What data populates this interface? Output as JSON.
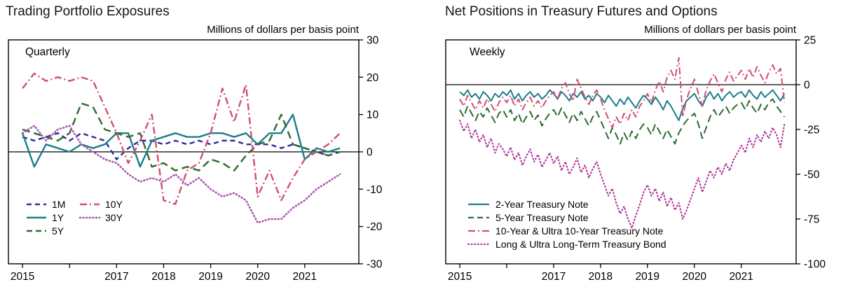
{
  "chart_data": [
    {
      "type": "line",
      "title": "Trading Portfolio Exposures",
      "units_label": "Millions of dollars per basis point",
      "frequency_label": "Quarterly",
      "x_range": [
        2015.0,
        2021.75
      ],
      "ylim": [
        -30,
        30
      ],
      "yticks": [
        30,
        20,
        10,
        0,
        -10,
        -20,
        -30
      ],
      "xticks": [
        2015,
        2016,
        2017,
        2018,
        2019,
        2020,
        2021
      ],
      "xtick_labels": [
        "2015",
        "",
        "2017",
        "2018",
        "2019",
        "2020",
        "2021"
      ],
      "zero_line": true,
      "legend_position": "bottom-left",
      "series": [
        {
          "name": "1M",
          "color": "#2b2ba0",
          "dash": "dashed",
          "values": [
            4,
            3,
            4,
            5,
            3,
            5,
            4,
            3,
            -2,
            1,
            3,
            3,
            2,
            3,
            2,
            3,
            2,
            3,
            3,
            2,
            2,
            2,
            1,
            2,
            1,
            0,
            -1,
            0
          ]
        },
        {
          "name": "1Y",
          "color": "#1b7f8c",
          "dash": "solid",
          "values": [
            5,
            -4,
            2,
            1,
            0,
            2,
            1,
            2,
            5,
            5,
            -4,
            3,
            4,
            5,
            4,
            4,
            5,
            5,
            4,
            5,
            2,
            5,
            5,
            10,
            -2,
            1,
            0,
            1
          ]
        },
        {
          "name": "5Y",
          "color": "#2d6a2f",
          "dash": "longdash",
          "values": [
            6,
            5,
            4,
            3,
            5,
            13,
            12,
            6,
            5,
            4,
            5,
            -4,
            -3,
            -5,
            -4,
            -5,
            -2,
            -3,
            -5,
            -1,
            2,
            3,
            10,
            2,
            1,
            0,
            -1,
            0
          ]
        },
        {
          "name": "10Y",
          "color": "#d14f70",
          "dash": "dashdot",
          "values": [
            17,
            21,
            19,
            20,
            19,
            20,
            19,
            12,
            5,
            -3,
            3,
            10,
            -13,
            -14,
            -5,
            -3,
            5,
            17,
            8,
            18,
            -12,
            -5,
            -13,
            -7,
            -2,
            0,
            2,
            5
          ]
        },
        {
          "name": "30Y",
          "color": "#aa55b2",
          "dash": "dotted",
          "values": [
            5,
            7,
            3,
            6,
            7,
            2,
            0,
            -2,
            -3,
            -6,
            -8,
            -7,
            -8,
            -6,
            -9,
            -7,
            -10,
            -12,
            -11,
            -13,
            -19,
            -18,
            -18,
            -15,
            -13,
            -10,
            -8,
            -6
          ]
        }
      ]
    },
    {
      "type": "line",
      "title": "Net Positions in Treasury Futures and Options",
      "units_label": "Millions of dollars per basis point",
      "frequency_label": "Weekly",
      "x_range": [
        2015.0,
        2021.92
      ],
      "ylim": [
        -100,
        25
      ],
      "yticks": [
        25,
        0,
        -25,
        -50,
        -75,
        -100
      ],
      "xticks": [
        2015,
        2016,
        2017,
        2018,
        2019,
        2020,
        2021
      ],
      "xtick_labels": [
        "2015",
        "",
        "2017",
        "2018",
        "2019",
        "2020",
        "2021"
      ],
      "zero_line": true,
      "legend_position": "bottom-left",
      "series": [
        {
          "name": "2-Year Treasury Note",
          "color": "#1b7f8c",
          "dash": "solid",
          "values": [
            -4,
            -6,
            -3,
            -7,
            -5,
            -8,
            -4,
            -6,
            -9,
            -5,
            -7,
            -4,
            -6,
            -3,
            -8,
            -5,
            -9,
            -6,
            -4,
            -7,
            -5,
            -8,
            -6,
            -3,
            -5,
            -8,
            -4,
            -6,
            -9,
            -5,
            -7,
            -4,
            -8,
            -6,
            -9,
            -5,
            -7,
            -10,
            -6,
            -9,
            -12,
            -8,
            -11,
            -7,
            -10,
            -13,
            -9,
            -6,
            -8,
            -11,
            -7,
            -10,
            -14,
            -9,
            -12,
            -16,
            -20,
            -13,
            -9,
            -7,
            -5,
            -9,
            -12,
            -7,
            -4,
            -8,
            -5,
            -9,
            -6,
            -4,
            -7,
            -5,
            -4,
            -7,
            -3,
            -6,
            -8,
            -4,
            -7,
            -5,
            -3,
            -6,
            -9,
            -5
          ]
        },
        {
          "name": "5-Year Treasury Note",
          "color": "#2d6a2f",
          "dash": "longdash",
          "values": [
            -14,
            -18,
            -12,
            -16,
            -20,
            -15,
            -18,
            -13,
            -17,
            -21,
            -16,
            -14,
            -18,
            -14,
            -20,
            -16,
            -22,
            -18,
            -15,
            -20,
            -17,
            -23,
            -19,
            -16,
            -14,
            -18,
            -13,
            -17,
            -21,
            -16,
            -20,
            -15,
            -19,
            -23,
            -18,
            -15,
            -20,
            -25,
            -30,
            -24,
            -28,
            -33,
            -27,
            -31,
            -26,
            -30,
            -25,
            -22,
            -24,
            -28,
            -22,
            -26,
            -30,
            -25,
            -29,
            -33,
            -27,
            -23,
            -20,
            -18,
            -16,
            -22,
            -30,
            -24,
            -18,
            -14,
            -18,
            -15,
            -12,
            -16,
            -13,
            -11,
            -10,
            -14,
            -9,
            -13,
            -16,
            -11,
            -14,
            -10,
            -8,
            -12,
            -15,
            -18
          ]
        },
        {
          "name": "10-Year & Ultra 10-Year Treasury Note",
          "color": "#d14f70",
          "dash": "dashdot",
          "values": [
            -8,
            -12,
            -6,
            -10,
            -14,
            -9,
            -13,
            -8,
            -11,
            -15,
            -10,
            -7,
            -10,
            -6,
            -12,
            -8,
            -14,
            -10,
            -7,
            -12,
            -9,
            -13,
            -9,
            -6,
            -4,
            -8,
            -2,
            1,
            -5,
            -9,
            3,
            -2,
            -7,
            -11,
            -6,
            -3,
            -8,
            -14,
            -19,
            -24,
            -18,
            -22,
            -16,
            -20,
            -14,
            -18,
            -12,
            -9,
            -5,
            -10,
            -3,
            2,
            -4,
            4,
            8,
            3,
            15,
            -18,
            -8,
            -2,
            3,
            -5,
            -12,
            -3,
            2,
            6,
            1,
            -4,
            3,
            7,
            2,
            5,
            8,
            3,
            9,
            4,
            10,
            5,
            1,
            7,
            11,
            6,
            9,
            -10
          ]
        },
        {
          "name": "Long & Ultra Long-Term Treasury Bond",
          "color": "#b23ba0",
          "dash": "dotted",
          "values": [
            -20,
            -26,
            -22,
            -30,
            -25,
            -32,
            -28,
            -35,
            -30,
            -38,
            -33,
            -36,
            -40,
            -35,
            -42,
            -38,
            -45,
            -40,
            -36,
            -43,
            -39,
            -46,
            -42,
            -38,
            -44,
            -40,
            -48,
            -43,
            -50,
            -46,
            -41,
            -49,
            -45,
            -52,
            -47,
            -43,
            -50,
            -56,
            -62,
            -58,
            -66,
            -72,
            -68,
            -75,
            -80,
            -73,
            -67,
            -60,
            -56,
            -62,
            -58,
            -65,
            -60,
            -68,
            -63,
            -70,
            -66,
            -75,
            -70,
            -64,
            -58,
            -52,
            -60,
            -54,
            -48,
            -52,
            -46,
            -50,
            -44,
            -48,
            -42,
            -38,
            -34,
            -38,
            -30,
            -35,
            -28,
            -32,
            -26,
            -30,
            -24,
            -28,
            -35,
            -22
          ]
        }
      ]
    }
  ]
}
